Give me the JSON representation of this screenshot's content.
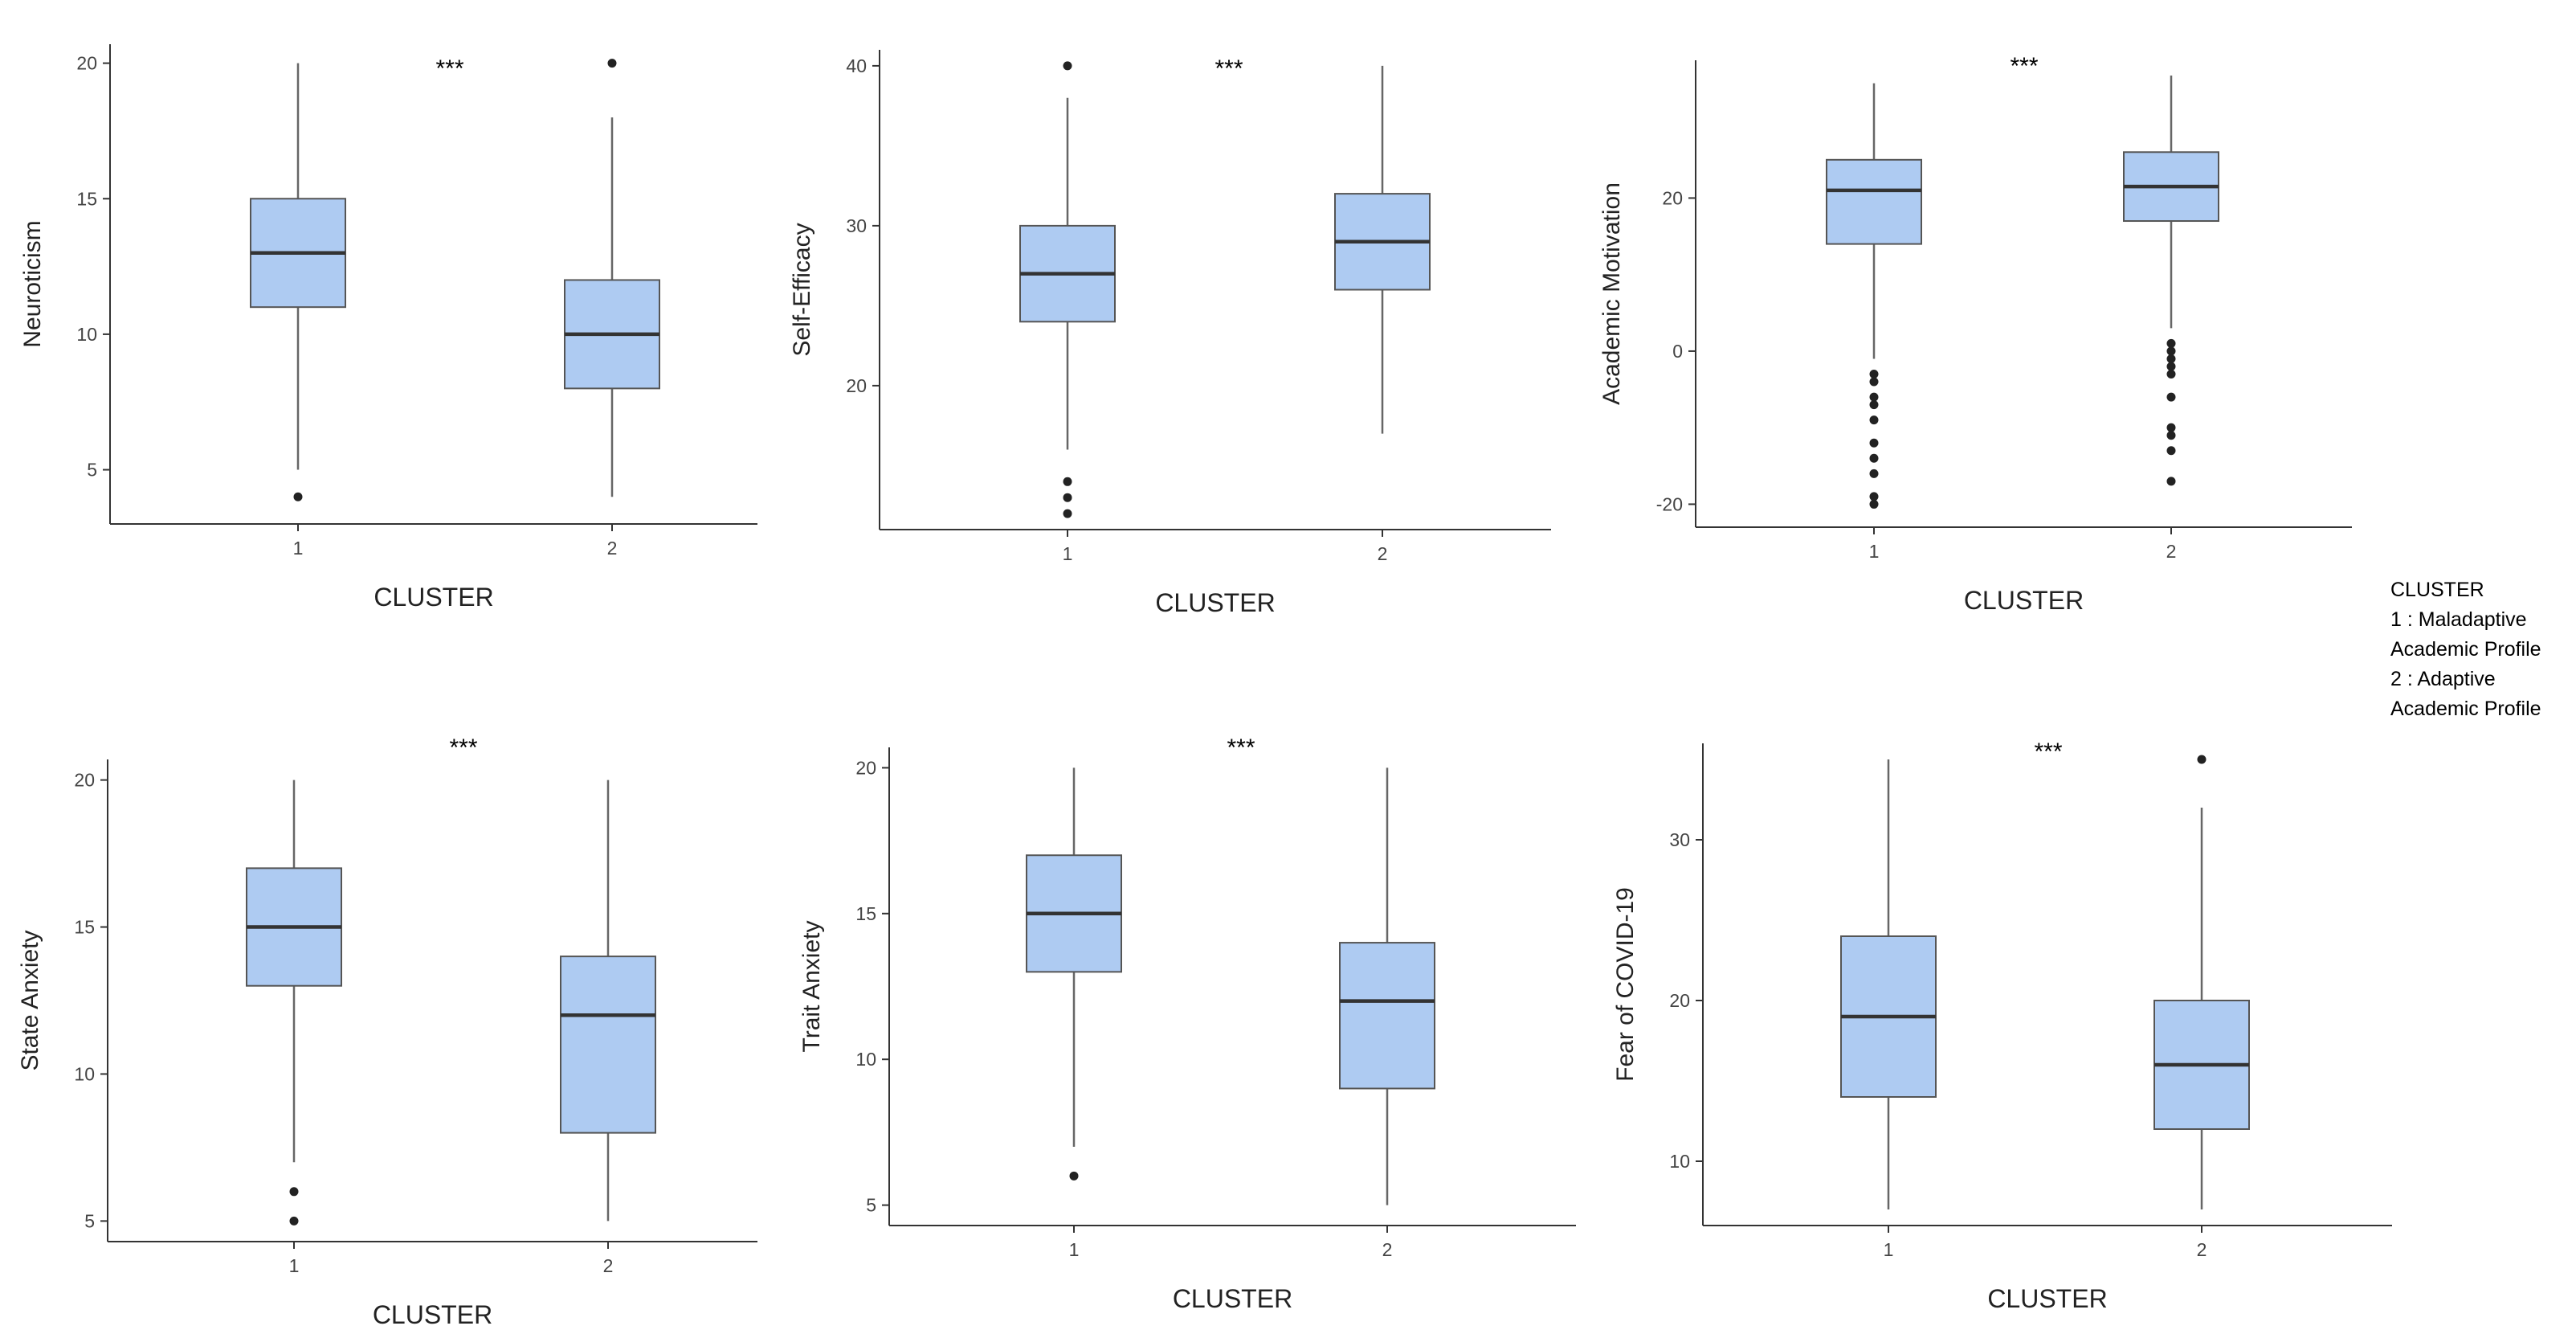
{
  "legend": {
    "title": "CLUSTER",
    "line1": "1 : Maladaptive",
    "line2": "Academic Profile",
    "line3": "2 : Adaptive",
    "line4": "Academic Profile"
  },
  "colors": {
    "box_fill": "#aecbf2",
    "box_stroke": "#555555",
    "median": "#333333",
    "axis": "#333333"
  },
  "chart_data": [
    {
      "type": "box",
      "title": "",
      "xlabel": "CLUSTER",
      "ylabel": "Neuroticism",
      "categories": [
        "1",
        "2"
      ],
      "ylim": [
        3,
        20.7
      ],
      "yticks": [
        5,
        10,
        15,
        20
      ],
      "significance": "***",
      "boxes": [
        {
          "category": "1",
          "whisker_low": 5,
          "q1": 11,
          "median": 13,
          "q3": 15,
          "whisker_high": 20,
          "outliers": [
            4
          ]
        },
        {
          "category": "2",
          "whisker_low": 4,
          "q1": 8,
          "median": 10,
          "q3": 12,
          "whisker_high": 18,
          "outliers": [
            20
          ]
        }
      ]
    },
    {
      "type": "box",
      "title": "",
      "xlabel": "CLUSTER",
      "ylabel": "Self-Efficacy",
      "categories": [
        "1",
        "2"
      ],
      "ylim": [
        11,
        41
      ],
      "yticks": [
        20,
        30,
        40
      ],
      "significance": "***",
      "boxes": [
        {
          "category": "1",
          "whisker_low": 16,
          "q1": 24,
          "median": 27,
          "q3": 30,
          "whisker_high": 38,
          "outliers": [
            12,
            13,
            14,
            40
          ]
        },
        {
          "category": "2",
          "whisker_low": 17,
          "q1": 26,
          "median": 29,
          "q3": 32,
          "whisker_high": 40,
          "outliers": []
        }
      ]
    },
    {
      "type": "box",
      "title": "",
      "xlabel": "CLUSTER",
      "ylabel": "Academic Motivation",
      "categories": [
        "1",
        "2"
      ],
      "ylim": [
        -23,
        38
      ],
      "yticks": [
        -20,
        0,
        20
      ],
      "significance": "***",
      "boxes": [
        {
          "category": "1",
          "whisker_low": -1,
          "q1": 14,
          "median": 21,
          "q3": 25,
          "whisker_high": 35,
          "outliers": [
            -3,
            -4,
            -6,
            -7,
            -9,
            -12,
            -14,
            -16,
            -19,
            -20
          ]
        },
        {
          "category": "2",
          "whisker_low": 3,
          "q1": 17,
          "median": 21.5,
          "q3": 26,
          "whisker_high": 36,
          "outliers": [
            1,
            0,
            -1,
            -2,
            -3,
            -6,
            -10,
            -11,
            -13,
            -17
          ]
        }
      ]
    },
    {
      "type": "box",
      "title": "",
      "xlabel": "CLUSTER",
      "ylabel": "State Anxiety",
      "categories": [
        "1",
        "2"
      ],
      "ylim": [
        4.3,
        20.7
      ],
      "yticks": [
        5,
        10,
        15,
        20
      ],
      "significance": "***",
      "boxes": [
        {
          "category": "1",
          "whisker_low": 7,
          "q1": 13,
          "median": 15,
          "q3": 17,
          "whisker_high": 20,
          "outliers": [
            5,
            6
          ]
        },
        {
          "category": "2",
          "whisker_low": 5,
          "q1": 8,
          "median": 12,
          "q3": 14,
          "whisker_high": 20,
          "outliers": []
        }
      ]
    },
    {
      "type": "box",
      "title": "",
      "xlabel": "CLUSTER",
      "ylabel": "Trait Anxiety",
      "categories": [
        "1",
        "2"
      ],
      "ylim": [
        4.3,
        20.7
      ],
      "yticks": [
        5,
        10,
        15,
        20
      ],
      "significance": "***",
      "boxes": [
        {
          "category": "1",
          "whisker_low": 7,
          "q1": 13,
          "median": 15,
          "q3": 17,
          "whisker_high": 20,
          "outliers": [
            6
          ]
        },
        {
          "category": "2",
          "whisker_low": 5,
          "q1": 9,
          "median": 12,
          "q3": 14,
          "whisker_high": 20,
          "outliers": []
        }
      ]
    },
    {
      "type": "box",
      "title": "",
      "xlabel": "CLUSTER",
      "ylabel": "Fear of COVID-19",
      "categories": [
        "1",
        "2"
      ],
      "ylim": [
        6,
        36
      ],
      "yticks": [
        10,
        20,
        30
      ],
      "significance": "***",
      "boxes": [
        {
          "category": "1",
          "whisker_low": 7,
          "q1": 14,
          "median": 19,
          "q3": 24,
          "whisker_high": 35,
          "outliers": []
        },
        {
          "category": "2",
          "whisker_low": 7,
          "q1": 12,
          "median": 16,
          "q3": 20,
          "whisker_high": 32,
          "outliers": [
            35
          ]
        }
      ]
    }
  ]
}
